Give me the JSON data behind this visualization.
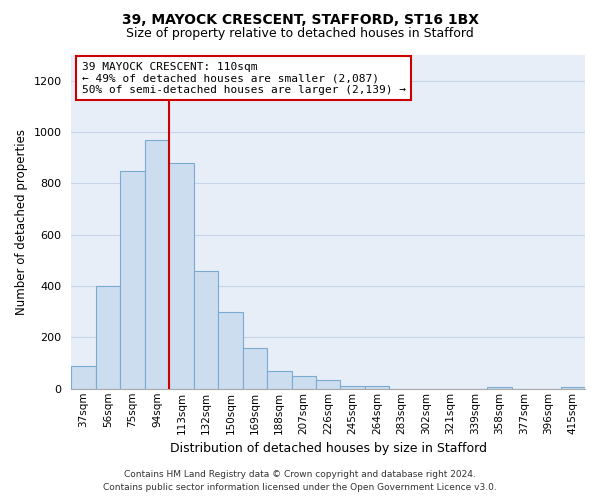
{
  "title1": "39, MAYOCK CRESCENT, STAFFORD, ST16 1BX",
  "title2": "Size of property relative to detached houses in Stafford",
  "xlabel": "Distribution of detached houses by size in Stafford",
  "ylabel": "Number of detached properties",
  "categories": [
    "37sqm",
    "56sqm",
    "75sqm",
    "94sqm",
    "113sqm",
    "132sqm",
    "150sqm",
    "169sqm",
    "188sqm",
    "207sqm",
    "226sqm",
    "245sqm",
    "264sqm",
    "283sqm",
    "302sqm",
    "321sqm",
    "339sqm",
    "358sqm",
    "377sqm",
    "396sqm",
    "415sqm"
  ],
  "values": [
    90,
    400,
    850,
    970,
    880,
    460,
    300,
    160,
    70,
    50,
    35,
    10,
    10,
    0,
    0,
    0,
    0,
    5,
    0,
    0,
    5
  ],
  "bar_color": "#cdddf0",
  "bar_edge_color": "#7aaad0",
  "red_line_x": 4,
  "annotation_text": "39 MAYOCK CRESCENT: 110sqm\n← 49% of detached houses are smaller (2,087)\n50% of semi-detached houses are larger (2,139) →",
  "annotation_box_facecolor": "#ffffff",
  "annotation_box_edgecolor": "#cc0000",
  "footer1": "Contains HM Land Registry data © Crown copyright and database right 2024.",
  "footer2": "Contains public sector information licensed under the Open Government Licence v3.0.",
  "ylim": [
    0,
    1300
  ],
  "yticks": [
    0,
    200,
    400,
    600,
    800,
    1000,
    1200
  ],
  "grid_color": "#c8d4e8",
  "bg_color": "#e8eef8",
  "font_family": "DejaVu Sans"
}
